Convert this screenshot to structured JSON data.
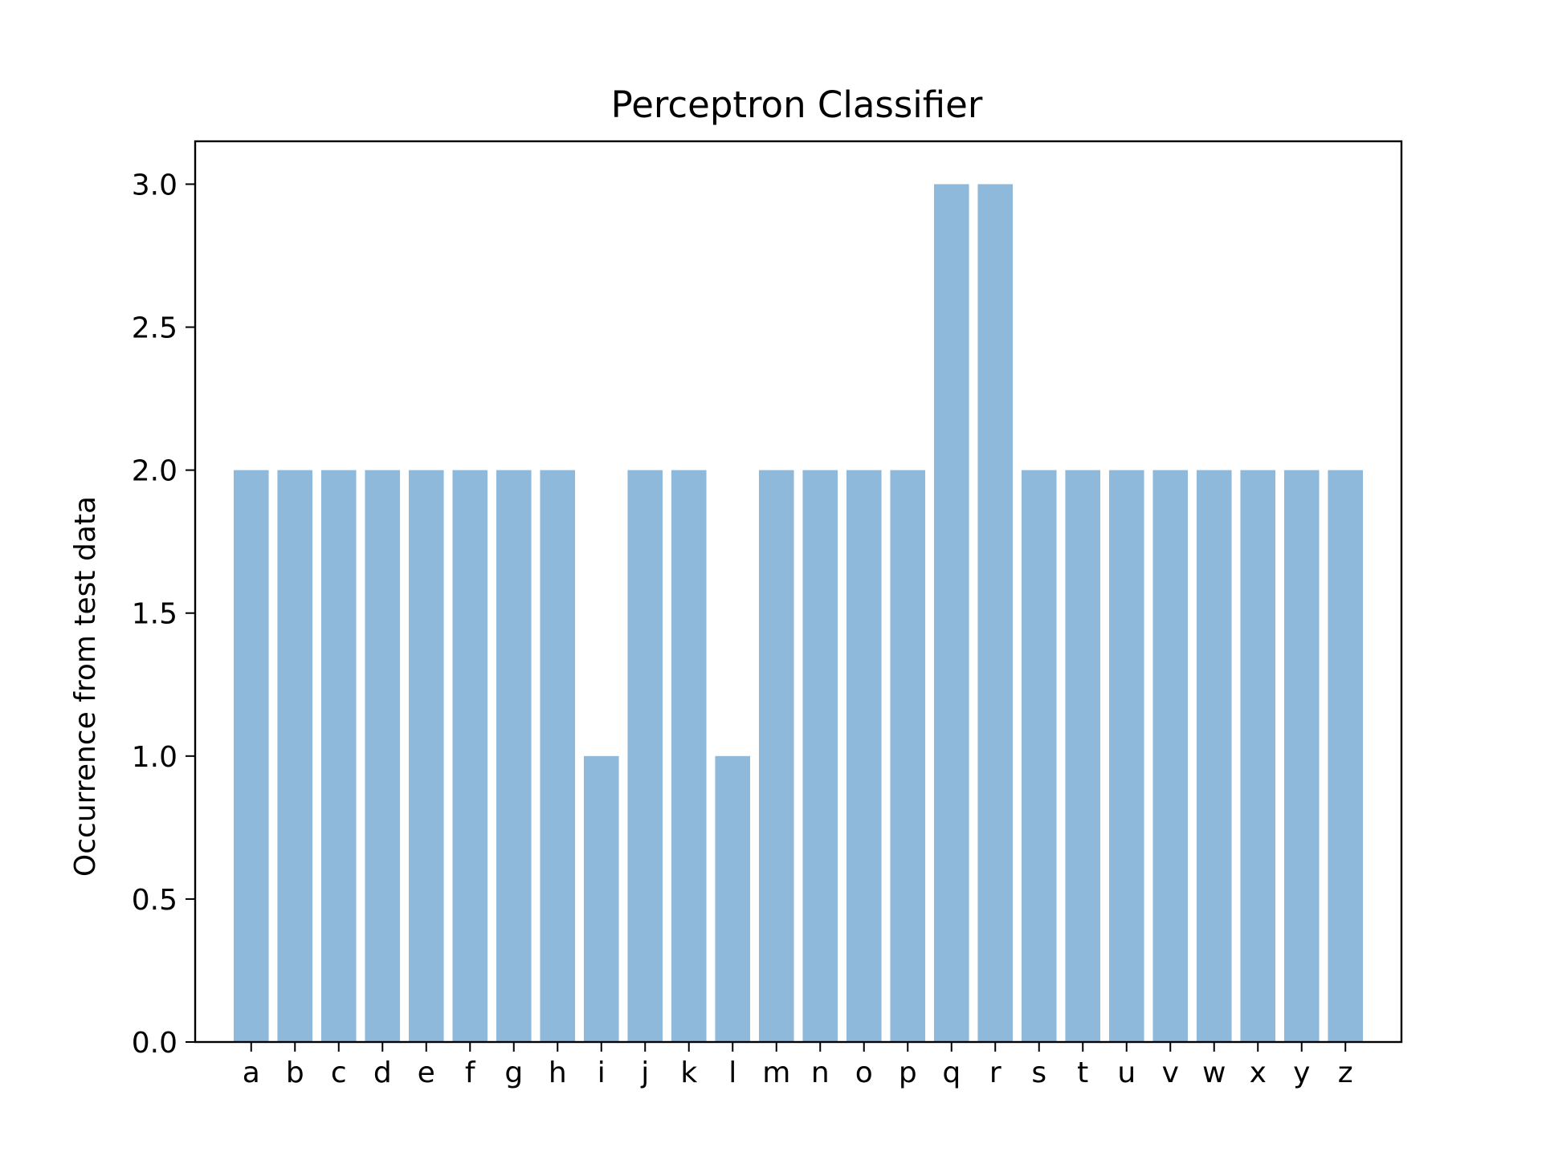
{
  "chart_data": {
    "type": "bar",
    "title": "Perceptron Classifier",
    "xlabel": "",
    "ylabel": "Occurrence from test data",
    "categories": [
      "a",
      "b",
      "c",
      "d",
      "e",
      "f",
      "g",
      "h",
      "i",
      "j",
      "k",
      "l",
      "m",
      "n",
      "o",
      "p",
      "q",
      "r",
      "s",
      "t",
      "u",
      "v",
      "w",
      "x",
      "y",
      "z"
    ],
    "values": [
      2,
      2,
      2,
      2,
      2,
      2,
      2,
      2,
      1,
      2,
      2,
      1,
      2,
      2,
      2,
      2,
      3,
      3,
      2,
      2,
      2,
      2,
      2,
      2,
      2,
      2
    ],
    "ylim": [
      0,
      3.15
    ],
    "yticks": [
      "0.0",
      "0.5",
      "1.0",
      "1.5",
      "2.0",
      "2.5",
      "3.0"
    ],
    "bar_color": "#8fb9da",
    "grid": false,
    "legend": "none"
  }
}
